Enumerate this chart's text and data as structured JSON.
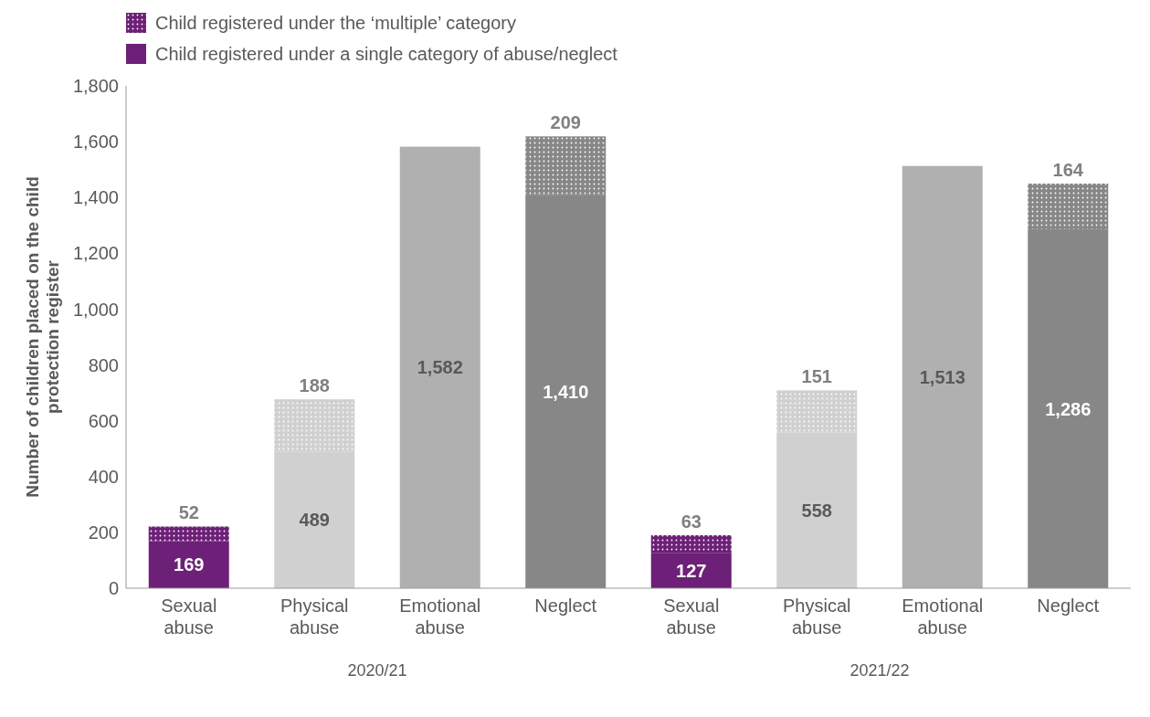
{
  "chart_data": {
    "type": "bar",
    "stacked": true,
    "ylabel": "Number of children placed on the child protection register",
    "categories": [
      "Sexual abuse",
      "Physical abuse",
      "Emotional abuse",
      "Neglect",
      "Sexual abuse",
      "Physical abuse",
      "Emotional abuse",
      "Neglect"
    ],
    "series": [
      {
        "name": "Child registered under a single category of abuse/neglect",
        "color": "#6d2077",
        "colors": [
          "#6d2077",
          "#d0d0d0",
          "#b0b0b0",
          "#878787",
          "#6d2077",
          "#d0d0d0",
          "#b0b0b0",
          "#878787"
        ],
        "values": [
          169,
          489,
          1582,
          1410,
          127,
          558,
          1513,
          1286
        ],
        "value_labels": [
          "169",
          "489",
          "1,582",
          "1,410",
          "127",
          "558",
          "1,513",
          "1,286"
        ]
      },
      {
        "name": "Child registered under the ‘multiple’ category",
        "color": "#6d2077",
        "colors": [
          "#6d2077",
          "#d0d0d0",
          "#b0b0b0",
          "#878787",
          "#6d2077",
          "#d0d0d0",
          "#b0b0b0",
          "#878787"
        ],
        "values": [
          52,
          188,
          null,
          209,
          63,
          151,
          null,
          164
        ],
        "value_labels": [
          "52",
          "188",
          null,
          "209",
          "63",
          "151",
          null,
          "164"
        ]
      }
    ],
    "ylim": [
      0,
      1800
    ],
    "yticks": [
      0,
      200,
      400,
      600,
      800,
      {
        "value": 1000,
        "label": "1,000"
      },
      {
        "value": 1200,
        "label": "1,200"
      },
      {
        "value": 1400,
        "label": "1,400"
      },
      {
        "value": 1600,
        "label": "1,600"
      },
      {
        "value": 1800,
        "label": "1,800"
      }
    ],
    "annotations": [
      "2020/21",
      "2021/22"
    ],
    "legend": "top left"
  }
}
